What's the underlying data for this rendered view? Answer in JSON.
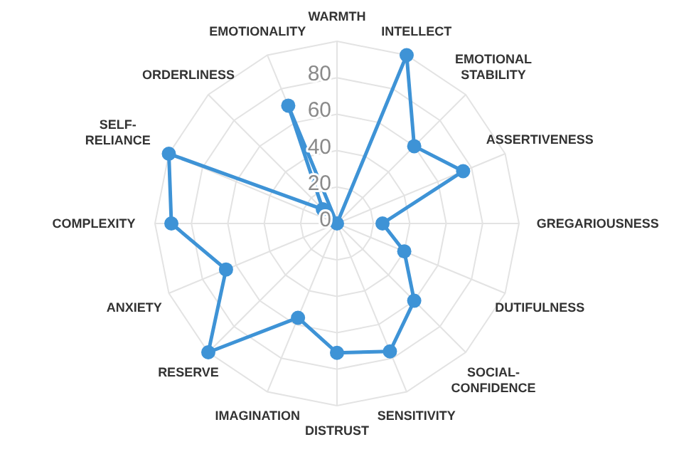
{
  "chart_data": {
    "type": "radar",
    "categories": [
      "WARMTH",
      "INTELLECT",
      "EMOTIONAL STABILITY",
      "ASSERTIVENESS",
      "GREGARIOUSNESS",
      "DUTIFULNESS",
      "SOCIAL-CONFIDENCE",
      "SENSITIVITY",
      "DISTRUST",
      "IMAGINATION",
      "RESERVE",
      "ANXIETY",
      "COMPLEXITY",
      "SELF-RELIANCE",
      "ORDERLINESS",
      "EMOTIONALITY"
    ],
    "series": [
      {
        "color": "#3e93d6",
        "values": [
          0,
          100,
          60,
          75,
          25,
          40,
          60,
          76,
          71,
          56,
          100,
          66,
          91,
          100,
          11,
          70
        ]
      }
    ],
    "ylim": [
      0,
      100
    ],
    "yticks": [
      0,
      20,
      40,
      60,
      80
    ],
    "grid": true,
    "marker": "circle",
    "line_style": "solid"
  }
}
